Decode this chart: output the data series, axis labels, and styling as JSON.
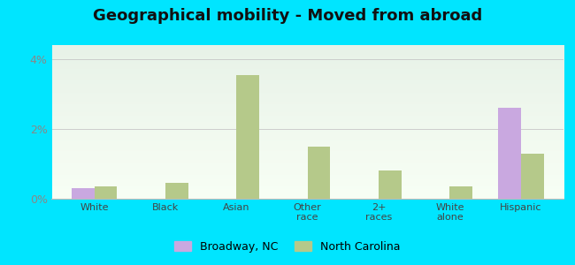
{
  "title": "Geographical mobility - Moved from abroad",
  "categories": [
    "White",
    "Black",
    "Asian",
    "Other\nrace",
    "2+\nraces",
    "White\nalone",
    "Hispanic"
  ],
  "broadway_values": [
    0.3,
    0.0,
    0.0,
    0.0,
    0.0,
    0.0,
    2.6
  ],
  "nc_values": [
    0.35,
    0.45,
    3.55,
    1.5,
    0.8,
    0.35,
    1.3
  ],
  "broadway_color": "#c9a8e0",
  "nc_color": "#b5c98a",
  "ylim": [
    0,
    4.4
  ],
  "ytick_vals": [
    0,
    2,
    4
  ],
  "ytick_labels": [
    "0%",
    "2%",
    "4%"
  ],
  "legend_broadway": "Broadway, NC",
  "legend_nc": "North Carolina",
  "bg_outer": "#00e5ff",
  "bg_top_color": "#e8f2e8",
  "bg_bottom_color": "#f8fff5",
  "title_fontsize": 13,
  "bar_width": 0.32
}
